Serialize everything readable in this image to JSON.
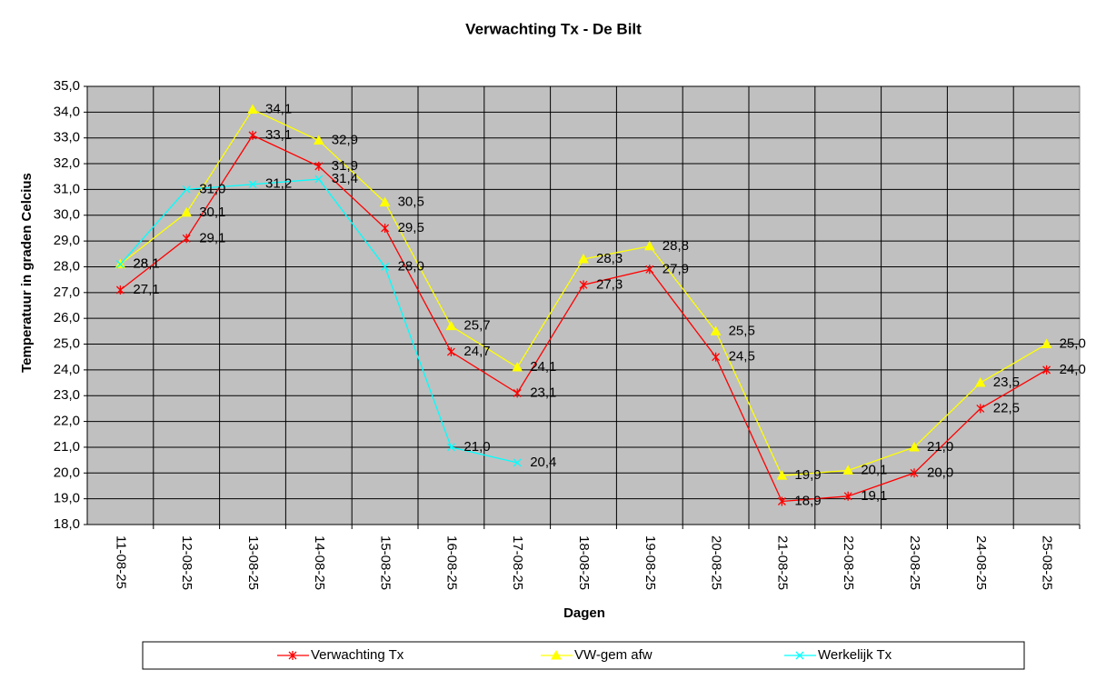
{
  "chart_data": {
    "type": "line",
    "title": "Verwachting Tx - De Bilt",
    "x_label": "Dagen",
    "y_label": "Temperatuur in graden Celcius",
    "categories": [
      "11-08-25",
      "12-08-25",
      "13-08-25",
      "14-08-25",
      "15-08-25",
      "16-08-25",
      "17-08-25",
      "18-08-25",
      "19-08-25",
      "20-08-25",
      "21-08-25",
      "22-08-25",
      "23-08-25",
      "24-08-25",
      "25-08-25"
    ],
    "series": [
      {
        "name": "Verwachting Tx",
        "color": "#ff0000",
        "marker": "star",
        "values": [
          27.1,
          29.1,
          33.1,
          31.9,
          29.5,
          24.7,
          23.1,
          27.3,
          27.9,
          24.5,
          18.9,
          19.1,
          20.0,
          22.5,
          24.0
        ],
        "value_labels": [
          "27,1",
          "29,1",
          "33,1",
          "31,9",
          "29,5",
          "24,7",
          "23,1",
          "27,3",
          "27,9",
          "24,5",
          "18,9",
          "19,1",
          "20,0",
          "22,5",
          "24,0"
        ]
      },
      {
        "name": "VW-gem afw",
        "color": "#ffff00",
        "marker": "triangle",
        "values": [
          28.1,
          30.1,
          34.1,
          32.9,
          30.5,
          25.7,
          24.1,
          28.3,
          28.8,
          25.5,
          19.9,
          20.1,
          21.0,
          23.5,
          25.0
        ],
        "value_labels": [
          "28,1",
          "30,1",
          "34,1",
          "32,9",
          "30,5",
          "25,7",
          "24,1",
          "28,3",
          "28,8",
          "25,5",
          "19,9",
          "20,1",
          "21,0",
          "23,5",
          "25,0"
        ]
      },
      {
        "name": "Werkelijk Tx",
        "color": "#00ffff",
        "marker": "x",
        "values": [
          28.1,
          31.0,
          31.2,
          31.4,
          28.0,
          21.0,
          20.4,
          null,
          null,
          null,
          null,
          null,
          null,
          null,
          null
        ],
        "value_labels": [
          "28,1",
          "31,0",
          "31,2",
          "31,4",
          "28,0",
          "21,0",
          "20,4",
          null,
          null,
          null,
          null,
          null,
          null,
          null,
          null
        ]
      }
    ],
    "ylim": [
      18,
      35
    ],
    "yticks": [
      {
        "value": 18,
        "label": "18,0"
      },
      {
        "value": 19,
        "label": "19,0"
      },
      {
        "value": 20,
        "label": "20,0"
      },
      {
        "value": 21,
        "label": "21,0"
      },
      {
        "value": 22,
        "label": "22,0"
      },
      {
        "value": 23,
        "label": "23,0"
      },
      {
        "value": 24,
        "label": "24,0"
      },
      {
        "value": 25,
        "label": "25,0"
      },
      {
        "value": 26,
        "label": "26,0"
      },
      {
        "value": 27,
        "label": "27,0"
      },
      {
        "value": 28,
        "label": "28,0"
      },
      {
        "value": 29,
        "label": "29,0"
      },
      {
        "value": 30,
        "label": "30,0"
      },
      {
        "value": 31,
        "label": "31,0"
      },
      {
        "value": 32,
        "label": "32,0"
      },
      {
        "value": 33,
        "label": "33,0"
      },
      {
        "value": 34,
        "label": "34,0"
      },
      {
        "value": 35,
        "label": "35,0"
      }
    ],
    "grid": true,
    "legend": "bottom",
    "plot_background": "#c0c0c0"
  }
}
